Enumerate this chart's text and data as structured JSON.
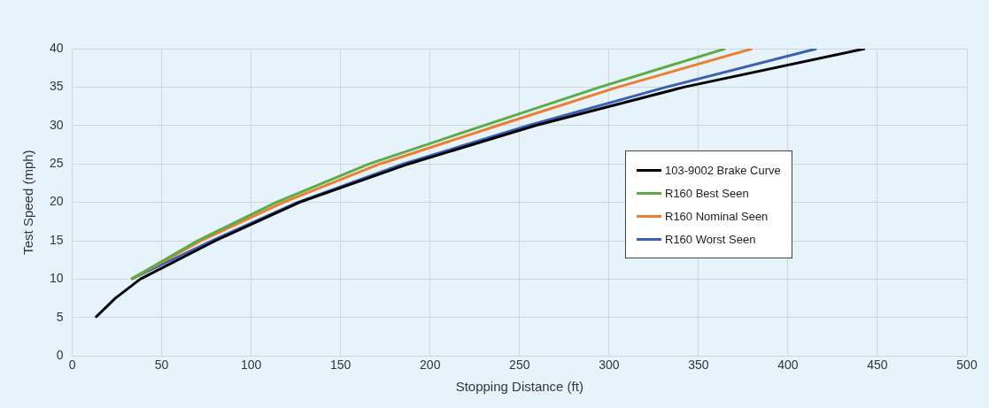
{
  "chart_data": {
    "type": "line",
    "xlabel": "Stopping Distance (ft)",
    "ylabel": "Test Speed (mph)",
    "xlim": [
      0,
      500
    ],
    "xticks": [
      0,
      50,
      100,
      150,
      200,
      250,
      300,
      350,
      400,
      450,
      500
    ],
    "ylim": [
      0,
      40
    ],
    "yticks": [
      0,
      5,
      10,
      15,
      20,
      25,
      30,
      35,
      40
    ],
    "grid": true,
    "legend": "right",
    "marker": "none",
    "line_style": "solid",
    "series": [
      {
        "name": "103-9002 Brake Curve",
        "color": "#000000",
        "x": [
          13,
          24,
          38,
          80,
          127,
          188,
          259,
          342,
          443
        ],
        "values": [
          5,
          7.5,
          10,
          15,
          20,
          25,
          30,
          35,
          40
        ]
      },
      {
        "name": "R160 Best Seen",
        "color": "#5aac44",
        "x": [
          33,
          70,
          114,
          166,
          230,
          295,
          365
        ],
        "values": [
          10,
          15,
          20,
          25,
          30,
          35,
          40
        ]
      },
      {
        "name": "R160 Nominal Seen",
        "color": "#ed7d31",
        "x": [
          33,
          72,
          118,
          172,
          238,
          305,
          380
        ],
        "values": [
          10,
          15,
          20,
          25,
          30,
          35,
          40
        ]
      },
      {
        "name": "R160 Worst Seen",
        "color": "#3a5fb4",
        "x": [
          33,
          78,
          126,
          185,
          255,
          332,
          416
        ],
        "values": [
          10,
          15,
          20,
          25,
          30,
          35,
          40
        ]
      }
    ]
  }
}
